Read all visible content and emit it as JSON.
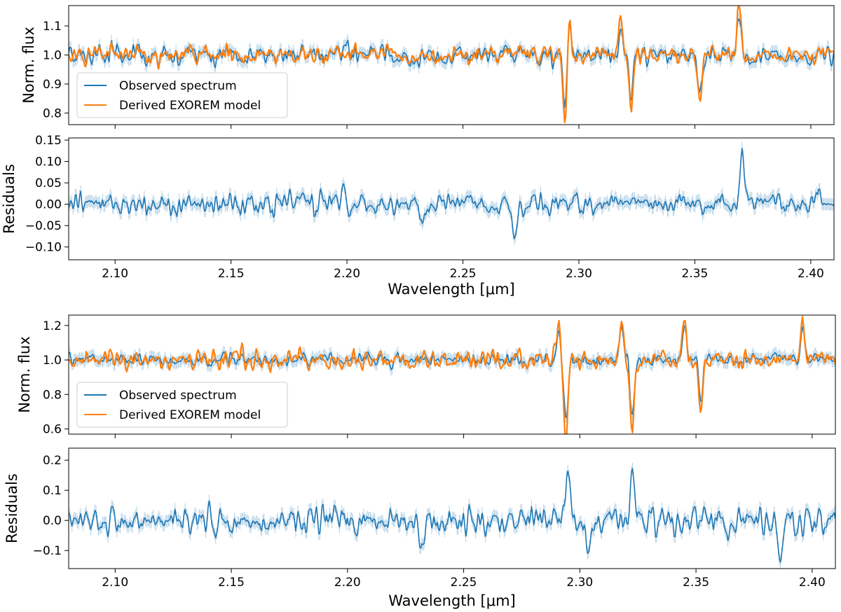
{
  "chart_data": [
    {
      "type": "line",
      "ylabel": "Norm. flux",
      "xlim": [
        2.08,
        2.41
      ],
      "ylim": [
        0.76,
        1.17
      ],
      "yticks": [
        "0.8",
        "0.9",
        "1.0",
        "1.1"
      ],
      "ytick_values": [
        0.8,
        0.9,
        1.0,
        1.1
      ],
      "legend": {
        "position": "lower-left",
        "entries": [
          "Observed spectrum",
          "Derived EXOREM model"
        ]
      },
      "series": [
        {
          "name": "Observed spectrum",
          "color": "#1f77b4",
          "shaded_errorbars": true,
          "baseline": 1.0,
          "noise_std": 0.028
        },
        {
          "name": "Derived EXOREM model",
          "color": "#ff7f0e",
          "baseline": 1.0,
          "noise_std": 0.026
        }
      ],
      "features": [
        {
          "x": 2.294,
          "y": 0.79
        },
        {
          "x": 2.3225,
          "y": 0.81
        },
        {
          "x": 2.296,
          "y": 1.12
        },
        {
          "x": 2.318,
          "y": 1.12
        },
        {
          "x": 2.352,
          "y": 0.86
        },
        {
          "x": 2.369,
          "y": 1.16
        }
      ]
    },
    {
      "type": "line",
      "ylabel": "Residuals",
      "xlabel": "Wavelength [μm]",
      "xlim": [
        2.08,
        2.41
      ],
      "ylim": [
        -0.13,
        0.155
      ],
      "yticks": [
        "−0.10",
        "−0.05",
        "0.00",
        "0.05",
        "0.10",
        "0.15"
      ],
      "ytick_values": [
        -0.1,
        -0.05,
        0.0,
        0.05,
        0.1,
        0.15
      ],
      "xticks": [
        "2.10",
        "2.15",
        "2.20",
        "2.25",
        "2.30",
        "2.35",
        "2.40"
      ],
      "xtick_values": [
        2.1,
        2.15,
        2.2,
        2.25,
        2.3,
        2.35,
        2.4
      ],
      "series": [
        {
          "name": "Residuals",
          "color": "#1f77b4",
          "shaded_errorbars": true,
          "baseline": 0.0,
          "noise_std": 0.02
        }
      ],
      "features": [
        {
          "x": 2.272,
          "y": -0.1
        },
        {
          "x": 2.3705,
          "y": 0.14
        },
        {
          "x": 2.232,
          "y": -0.06
        },
        {
          "x": 2.199,
          "y": 0.05
        }
      ]
    },
    {
      "type": "line",
      "ylabel": "Norm. flux",
      "xlim": [
        2.08,
        2.41
      ],
      "ylim": [
        0.57,
        1.26
      ],
      "yticks": [
        "0.6",
        "0.8",
        "1.0",
        "1.2"
      ],
      "ytick_values": [
        0.6,
        0.8,
        1.0,
        1.2
      ],
      "legend": {
        "position": "lower-left",
        "entries": [
          "Observed spectrum",
          "Derived EXOREM model"
        ]
      },
      "series": [
        {
          "name": "Observed spectrum",
          "color": "#1f77b4",
          "shaded_errorbars": true,
          "baseline": 1.0,
          "noise_std": 0.028
        },
        {
          "name": "Derived EXOREM model",
          "color": "#ff7f0e",
          "baseline": 1.0,
          "noise_std": 0.05
        }
      ],
      "features": [
        {
          "x": 2.294,
          "y": 0.59
        },
        {
          "x": 2.3225,
          "y": 0.63
        },
        {
          "x": 2.352,
          "y": 0.7
        },
        {
          "x": 2.318,
          "y": 1.23
        },
        {
          "x": 2.345,
          "y": 1.23
        },
        {
          "x": 2.396,
          "y": 1.23
        },
        {
          "x": 2.291,
          "y": 1.19
        }
      ]
    },
    {
      "type": "line",
      "ylabel": "Residuals",
      "xlabel": "Wavelength [μm]",
      "xlim": [
        2.08,
        2.41
      ],
      "ylim": [
        -0.16,
        0.24
      ],
      "yticks": [
        "−0.1",
        "0.0",
        "0.1",
        "0.2"
      ],
      "ytick_values": [
        -0.1,
        0.0,
        0.1,
        0.2
      ],
      "xticks": [
        "2.10",
        "2.15",
        "2.20",
        "2.25",
        "2.30",
        "2.35",
        "2.40"
      ],
      "xtick_values": [
        2.1,
        2.15,
        2.2,
        2.25,
        2.3,
        2.35,
        2.4
      ],
      "series": [
        {
          "name": "Residuals",
          "color": "#1f77b4",
          "shaded_errorbars": true,
          "baseline": 0.0,
          "noise_std": 0.035
        }
      ],
      "features": [
        {
          "x": 2.295,
          "y": 0.22
        },
        {
          "x": 2.3225,
          "y": 0.2
        },
        {
          "x": 2.304,
          "y": -0.12
        },
        {
          "x": 2.386,
          "y": -0.15
        },
        {
          "x": 2.232,
          "y": -0.08
        },
        {
          "x": 2.143,
          "y": -0.05
        }
      ]
    }
  ]
}
